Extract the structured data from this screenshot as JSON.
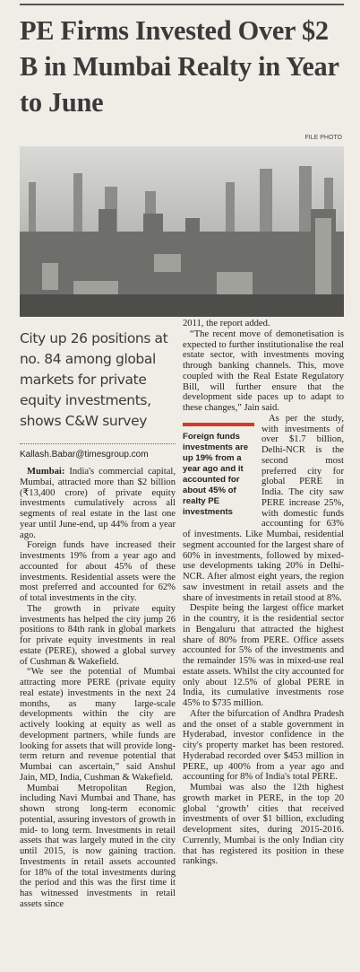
{
  "article": {
    "headline": "PE Firms Invested Over $2 B in Mumbai Realty in Year to June",
    "photo_credit": "FILE PHOTO",
    "subhead": "City up 26 positions at no. 84 among global markets for private equity investments, shows C&W survey",
    "byline": "Kallash.Babar@timesgroup.com",
    "dateline": "Mumbai:",
    "left_paragraphs": [
      "India's commercial capital, Mumbai, attracted more than $2 billion (₹13,400 crore) of private equity investments cumulatively across all segments of real estate in the last one year until June-end, up 44% from a year ago.",
      "Foreign funds have increased their investments 19% from a year ago and accounted for about 45% of these investments. Residential assets were the most preferred and accounted for 62% of total investments in the city.",
      "The growth in private equity investments has helped the city jump 26 positions to 84th rank in global markets for private equity investments in real estate (PERE), showed a global survey of Cushman & Wakefield.",
      "“We see the potential of Mumbai attracting more PERE (private equity real estate) investments in the next 24 months, as many large-scale developments within the city are actively looking at equity as well as development partners, while funds are looking for assets that will provide long-term return and revenue potential that Mumbai can ascertain,” said Anshul Jain, MD, India, Cushman & Wakefield.",
      "Mumbai Metropolitan Region, including Navi Mumbai and Thane, has shown strong long-term economic potential, assuring investors of growth in mid- to long term. Investments in retail assets that was largely muted in the city until 2015, is now gaining traction. Investments in retail assets accounted for 18% of the total investments during the period and this was the first time it has witnessed investments in retail assets since"
    ],
    "right_paragraphs": [
      "2011, the report added.",
      "“The recent move of demonetisation is expected to further institutionalise the real estate sector, with investments moving through banking channels. This, move coupled with the Real Estate Regulatory Bill, will further ensure that the development side paces up to adapt to these changes,” Jain said.",
      "As per the study, with investments of over $1.7 billion, Delhi-NCR is the second most preferred city for global PERE in India. The city saw PERE increase 25%, with domestic funds accounting for 63% of investments. Like Mumbai, residential segment accounted for the largest share of 60% in investments, followed by mixed-use developments taking 20% in Delhi-NCR. After almost eight years, the region saw investment in retail assets and the share of investments in retail stood at 8%.",
      "Despite being the largest office market in the country, it is the residential sector in Bengaluru that attracted the highest share of 80% from PERE. Office assets accounted for 5% of the investments and the remainder 15% was in mixed-use real estate assets. Whilst the city accounted for only about 12.5% of global PERE in India, its cumulative investments rose 45% to $735 million.",
      "After the bifurcation of Andhra Pradesh and the onset of a stable government in Hyderabad, investor confidence in the city's property market has been restored. Hyderabad recorded over $453 million in PERE, up 400% from a year ago and accounting for 8% of India's total PERE.",
      "Mumbai was also the 12th highest growth market in PERE, in the top 20 global ‘growth’ cities that received investments of over $1 billion, excluding development sites, during 2015-2016. Currently, Mumbai is the only Indian city that has registered its position in these rankings."
    ],
    "callout": "Foreign funds investments are up 19% from a year ago and it accounted for about 45% of realty PE investments"
  }
}
